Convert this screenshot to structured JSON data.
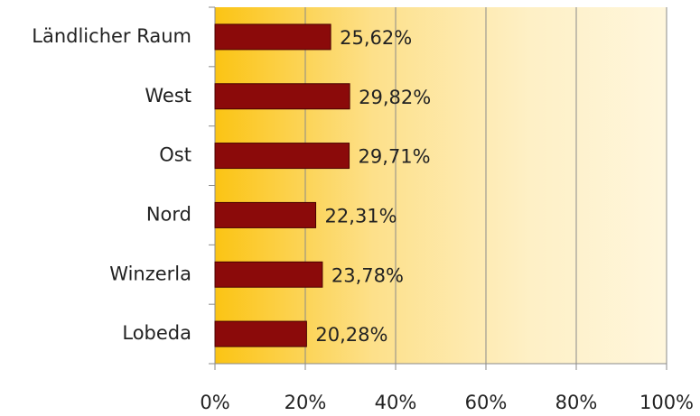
{
  "chart_data": {
    "type": "barh",
    "categories": [
      "Ländlicher Raum",
      "West",
      "Ost",
      "Nord",
      "Winzerla",
      "Lobeda"
    ],
    "values": [
      25.62,
      29.82,
      29.71,
      22.31,
      23.78,
      20.28
    ],
    "value_labels": [
      "25,62%",
      "29,82%",
      "29,71%",
      "22,31%",
      "23,78%",
      "20,28%"
    ],
    "color": "#8b0a0a",
    "xlim": [
      0,
      100
    ],
    "xticks": [
      {
        "value": 0,
        "label": "0%"
      },
      {
        "value": 20,
        "label": "20%"
      },
      {
        "value": 40,
        "label": "40%"
      },
      {
        "value": 60,
        "label": "60%"
      },
      {
        "value": 80,
        "label": "80%"
      },
      {
        "value": 100,
        "label": "100%"
      }
    ],
    "grid": true
  }
}
